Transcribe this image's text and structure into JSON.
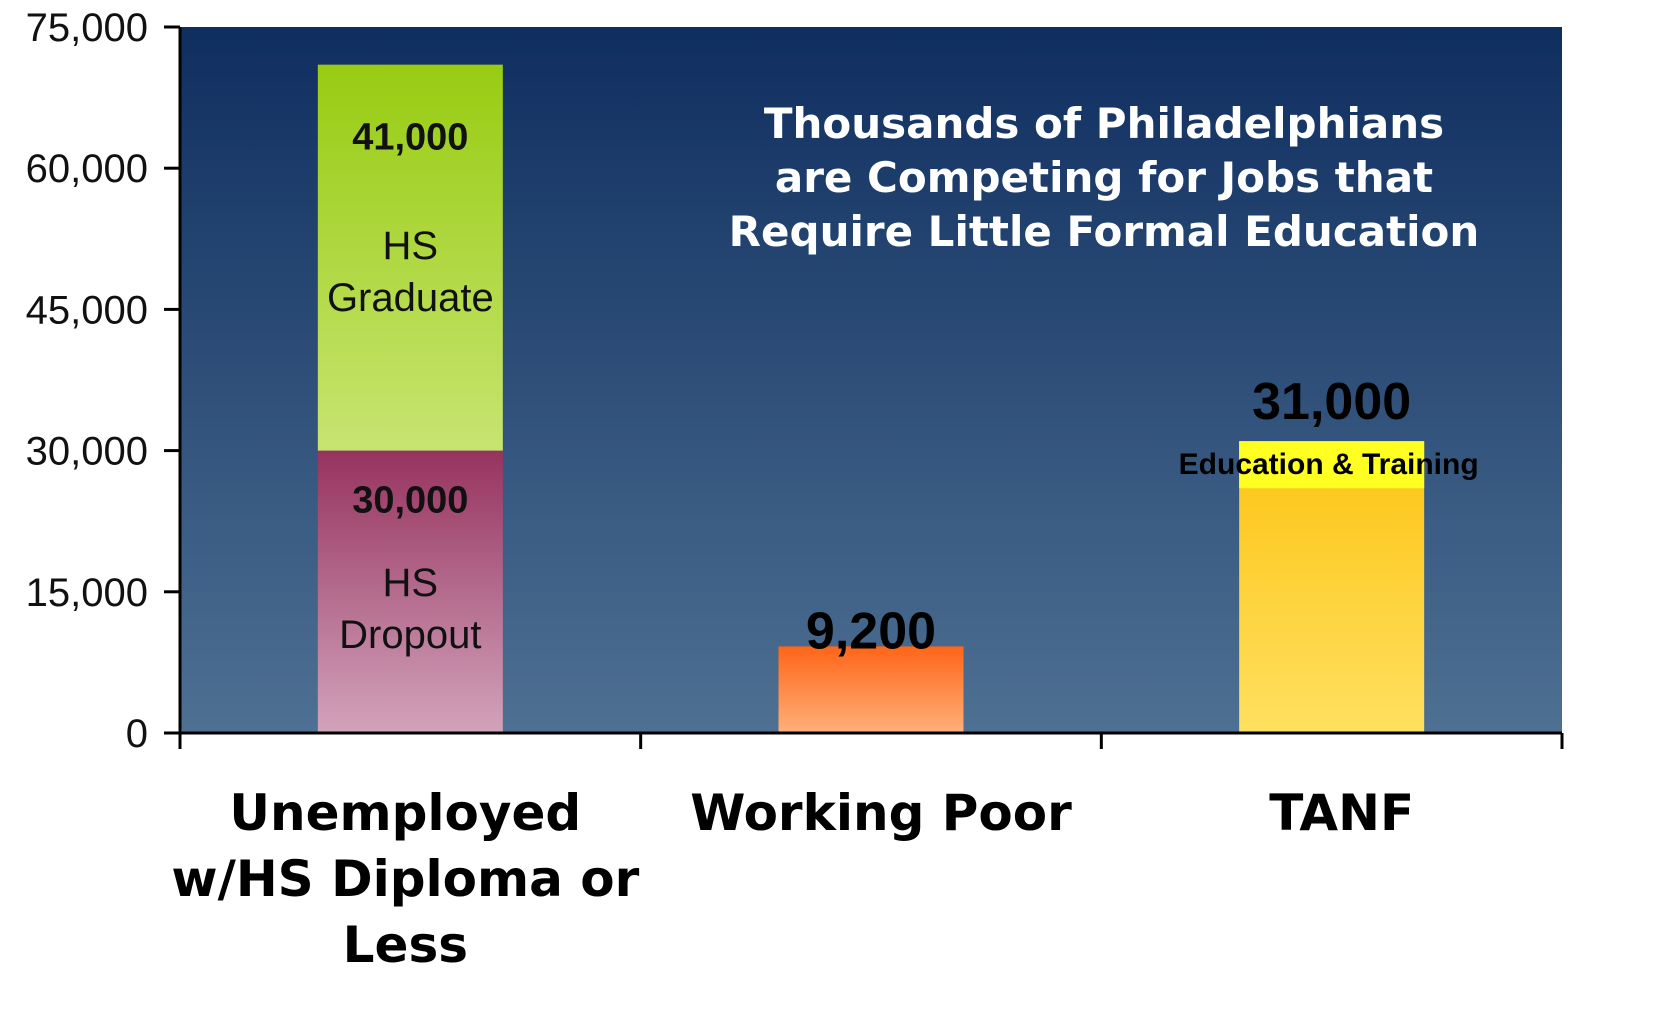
{
  "chart_data": {
    "type": "bar",
    "stacked": true,
    "title": "Thousands of Philadelphians are Competing for Jobs that Require Little Formal Education",
    "title_lines": [
      "Thousands of Philadelphians",
      "are Competing for Jobs that",
      "Require Little Formal Education"
    ],
    "categories": [
      "Unemployed w/HS Diploma or Less",
      "Working Poor",
      "TANF"
    ],
    "category_lines": [
      [
        "Unemployed",
        "w/HS Diploma or",
        "Less"
      ],
      [
        "Working Poor"
      ],
      [
        "TANF"
      ]
    ],
    "ylim": [
      0,
      75000
    ],
    "yticks": [
      0,
      15000,
      30000,
      45000,
      60000,
      75000
    ],
    "ytick_labels": [
      "0",
      "15,000",
      "30,000",
      "45,000",
      "60,000",
      "75,000"
    ],
    "grid": false,
    "bars": [
      {
        "category": "Unemployed w/HS Diploma or Less",
        "segments": [
          {
            "value": 30000,
            "value_label": "30,000",
            "name_lines": [
              "HS",
              "Dropout"
            ],
            "color_top": "#96335f",
            "color_bottom": "#d2a3bb"
          },
          {
            "value": 41000,
            "value_label": "41,000",
            "name_lines": [
              "HS",
              "Graduate"
            ],
            "color_top": "#98cc12",
            "color_bottom": "#c7e471"
          }
        ]
      },
      {
        "category": "Working Poor",
        "segments": [
          {
            "value": 9200,
            "value_label": "9,200",
            "color_top": "#ff6518",
            "color_bottom": "#ffb07a"
          }
        ]
      },
      {
        "category": "TANF",
        "segments": [
          {
            "value": 31000,
            "value_label": "31,000",
            "sub_label": "Education & Training",
            "color_top": "#fdc414",
            "color_bottom": "#fee060",
            "cap_color": "#ffff22",
            "cap_value": 5000
          }
        ]
      }
    ]
  },
  "colors": {
    "plot_bg_top": "#0f2e60",
    "plot_bg_bottom": "#4e7092",
    "axis": "#000000",
    "title": "#ffffff"
  }
}
